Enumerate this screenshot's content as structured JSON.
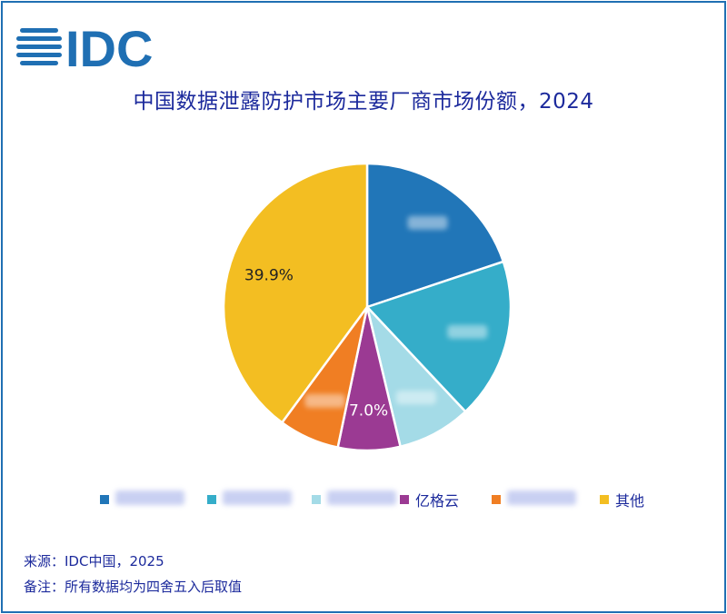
{
  "logo": {
    "text": "IDC"
  },
  "chart_data": {
    "type": "pie",
    "title": "中国数据泄露防护市场主要厂商市场份额，2024",
    "slices": [
      {
        "label": "",
        "value": null,
        "value_label": "",
        "color": "#2176b8"
      },
      {
        "label": "",
        "value": null,
        "value_label": "",
        "color": "#35adc9"
      },
      {
        "label": "",
        "value": null,
        "value_label": "",
        "color": "#a4dbe7"
      },
      {
        "label": "亿格云",
        "value": 7.0,
        "value_label": "7.0%",
        "color": "#9b3a93"
      },
      {
        "label": "",
        "value": null,
        "value_label": "",
        "color": "#f07e23"
      },
      {
        "label": "其他",
        "value": 39.9,
        "value_label": "39.9%",
        "color": "#f3be22"
      }
    ],
    "legend_position": "bottom"
  },
  "footer": {
    "source": "来源：IDC中国，2025",
    "note": "备注：所有数据均为四舍五入后取值"
  }
}
